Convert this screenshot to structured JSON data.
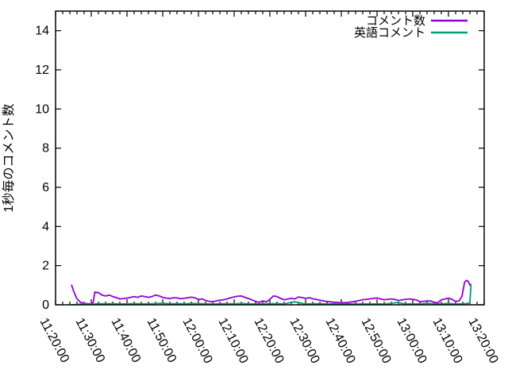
{
  "page": {
    "background_color": "#ffffff",
    "axis_color": "#000000"
  },
  "chart_data": {
    "type": "line",
    "title": "",
    "xlabel": "",
    "ylabel": "1秒毎のコメント数",
    "grid": false,
    "legend_position": "top-right-inside",
    "ylim": [
      0,
      15
    ],
    "yticks": [
      0,
      2,
      4,
      6,
      8,
      10,
      12,
      14
    ],
    "xlim_minutes": [
      0,
      120
    ],
    "minor_xtick_step_minutes": 2,
    "x_axis_start_label": "11:20:00",
    "x_axis_end_label": "13:20:00",
    "xticks": [
      {
        "minutes": 0,
        "label": "11:20:00"
      },
      {
        "minutes": 10,
        "label": "11:30:00"
      },
      {
        "minutes": 20,
        "label": "11:40:00"
      },
      {
        "minutes": 30,
        "label": "11:50:00"
      },
      {
        "minutes": 40,
        "label": "12:00:00"
      },
      {
        "minutes": 50,
        "label": "12:10:00"
      },
      {
        "minutes": 60,
        "label": "12:20:00"
      },
      {
        "minutes": 70,
        "label": "12:30:00"
      },
      {
        "minutes": 80,
        "label": "12:40:00"
      },
      {
        "minutes": 90,
        "label": "12:50:00"
      },
      {
        "minutes": 100,
        "label": "13:00:00"
      },
      {
        "minutes": 110,
        "label": "13:10:00"
      },
      {
        "minutes": 120,
        "label": "13:20:00"
      }
    ],
    "series": [
      {
        "name": "コメント数",
        "color": "#9400d3",
        "points_t_minutes_value": [
          [
            4.5,
            1.0
          ],
          [
            5,
            0.72
          ],
          [
            6,
            0.3
          ],
          [
            7,
            0.13
          ],
          [
            8,
            0.07
          ],
          [
            9,
            0.06
          ],
          [
            10,
            0.04
          ],
          [
            10.5,
            0.1
          ],
          [
            11,
            0.65
          ],
          [
            12,
            0.62
          ],
          [
            13,
            0.5
          ],
          [
            14,
            0.45
          ],
          [
            15,
            0.5
          ],
          [
            16,
            0.42
          ],
          [
            17,
            0.37
          ],
          [
            18,
            0.3
          ],
          [
            19,
            0.32
          ],
          [
            20,
            0.34
          ],
          [
            21,
            0.38
          ],
          [
            22,
            0.42
          ],
          [
            23,
            0.38
          ],
          [
            24,
            0.45
          ],
          [
            25,
            0.42
          ],
          [
            26,
            0.38
          ],
          [
            27,
            0.42
          ],
          [
            28,
            0.5
          ],
          [
            29,
            0.45
          ],
          [
            30,
            0.38
          ],
          [
            31,
            0.34
          ],
          [
            32,
            0.32
          ],
          [
            33,
            0.36
          ],
          [
            34,
            0.35
          ],
          [
            35,
            0.31
          ],
          [
            36,
            0.33
          ],
          [
            37,
            0.36
          ],
          [
            38,
            0.39
          ],
          [
            39,
            0.36
          ],
          [
            40,
            0.27
          ],
          [
            41,
            0.3
          ],
          [
            42,
            0.22
          ],
          [
            43,
            0.18
          ],
          [
            44,
            0.16
          ],
          [
            45,
            0.2
          ],
          [
            46,
            0.23
          ],
          [
            47,
            0.26
          ],
          [
            48,
            0.3
          ],
          [
            49,
            0.36
          ],
          [
            50,
            0.4
          ],
          [
            51,
            0.44
          ],
          [
            52,
            0.45
          ],
          [
            53,
            0.38
          ],
          [
            54,
            0.32
          ],
          [
            55,
            0.25
          ],
          [
            56,
            0.18
          ],
          [
            57,
            0.12
          ],
          [
            58,
            0.2
          ],
          [
            59,
            0.15
          ],
          [
            60,
            0.28
          ],
          [
            61,
            0.45
          ],
          [
            62,
            0.42
          ],
          [
            63,
            0.33
          ],
          [
            64,
            0.26
          ],
          [
            65,
            0.29
          ],
          [
            66,
            0.33
          ],
          [
            67,
            0.3
          ],
          [
            68,
            0.4
          ],
          [
            69,
            0.37
          ],
          [
            70,
            0.33
          ],
          [
            71,
            0.36
          ],
          [
            72,
            0.31
          ],
          [
            73,
            0.27
          ],
          [
            74,
            0.23
          ],
          [
            75,
            0.2
          ],
          [
            76,
            0.17
          ],
          [
            77,
            0.15
          ],
          [
            78,
            0.13
          ],
          [
            79,
            0.12
          ],
          [
            80,
            0.1
          ],
          [
            81,
            0.11
          ],
          [
            82,
            0.12
          ],
          [
            83,
            0.15
          ],
          [
            84,
            0.18
          ],
          [
            85,
            0.22
          ],
          [
            86,
            0.26
          ],
          [
            87,
            0.28
          ],
          [
            88,
            0.3
          ],
          [
            89,
            0.33
          ],
          [
            90,
            0.35
          ],
          [
            91,
            0.3
          ],
          [
            92,
            0.26
          ],
          [
            93,
            0.28
          ],
          [
            94,
            0.3
          ],
          [
            95,
            0.27
          ],
          [
            96,
            0.22
          ],
          [
            97,
            0.25
          ],
          [
            98,
            0.28
          ],
          [
            99,
            0.3
          ],
          [
            100,
            0.28
          ],
          [
            101,
            0.25
          ],
          [
            102,
            0.16
          ],
          [
            103,
            0.18
          ],
          [
            104,
            0.2
          ],
          [
            105,
            0.2
          ],
          [
            106,
            0.13
          ],
          [
            107,
            0.1
          ],
          [
            108,
            0.25
          ],
          [
            109,
            0.3
          ],
          [
            110,
            0.34
          ],
          [
            111,
            0.28
          ],
          [
            112,
            0.17
          ],
          [
            113,
            0.2
          ],
          [
            113.8,
            0.45
          ],
          [
            114.5,
            1.15
          ],
          [
            115,
            1.25
          ],
          [
            115.5,
            1.2
          ],
          [
            116,
            1.0
          ]
        ]
      },
      {
        "name": "英語コメント",
        "color": "#009e73",
        "points_t_minutes_value": [
          [
            4.5,
            0.0
          ],
          [
            6,
            0.02
          ],
          [
            8,
            0.05
          ],
          [
            10,
            0.03
          ],
          [
            11,
            0.04
          ],
          [
            12,
            0.06
          ],
          [
            14,
            0.05
          ],
          [
            16,
            0.06
          ],
          [
            18,
            0.04
          ],
          [
            20,
            0.05
          ],
          [
            22,
            0.06
          ],
          [
            24,
            0.05
          ],
          [
            26,
            0.05
          ],
          [
            28,
            0.06
          ],
          [
            30,
            0.08
          ],
          [
            32,
            0.05
          ],
          [
            34,
            0.06
          ],
          [
            36,
            0.05
          ],
          [
            38,
            0.07
          ],
          [
            40,
            0.06
          ],
          [
            42,
            0.05
          ],
          [
            44,
            0.04
          ],
          [
            46,
            0.05
          ],
          [
            48,
            0.06
          ],
          [
            50,
            0.05
          ],
          [
            52,
            0.06
          ],
          [
            54,
            0.05
          ],
          [
            56,
            0.04
          ],
          [
            58,
            0.05
          ],
          [
            60,
            0.06
          ],
          [
            62,
            0.06
          ],
          [
            64,
            0.05
          ],
          [
            65,
            0.08
          ],
          [
            66,
            0.13
          ],
          [
            67,
            0.15
          ],
          [
            68,
            0.12
          ],
          [
            69,
            0.07
          ],
          [
            70,
            0.05
          ],
          [
            72,
            0.05
          ],
          [
            74,
            0.06
          ],
          [
            76,
            0.04
          ],
          [
            78,
            0.05
          ],
          [
            80,
            0.04
          ],
          [
            82,
            0.05
          ],
          [
            84,
            0.04
          ],
          [
            86,
            0.05
          ],
          [
            88,
            0.04
          ],
          [
            90,
            0.05
          ],
          [
            92,
            0.04
          ],
          [
            94,
            0.07
          ],
          [
            95,
            0.1
          ],
          [
            96,
            0.12
          ],
          [
            97,
            0.07
          ],
          [
            98,
            0.05
          ],
          [
            100,
            0.05
          ],
          [
            102,
            0.04
          ],
          [
            104,
            0.08
          ],
          [
            106,
            0.05
          ],
          [
            108,
            0.05
          ],
          [
            110,
            0.07
          ],
          [
            112,
            0.04
          ],
          [
            114,
            0.05
          ],
          [
            115,
            0.06
          ],
          [
            116,
            0.1
          ],
          [
            116.3,
            1.05
          ]
        ]
      }
    ]
  }
}
